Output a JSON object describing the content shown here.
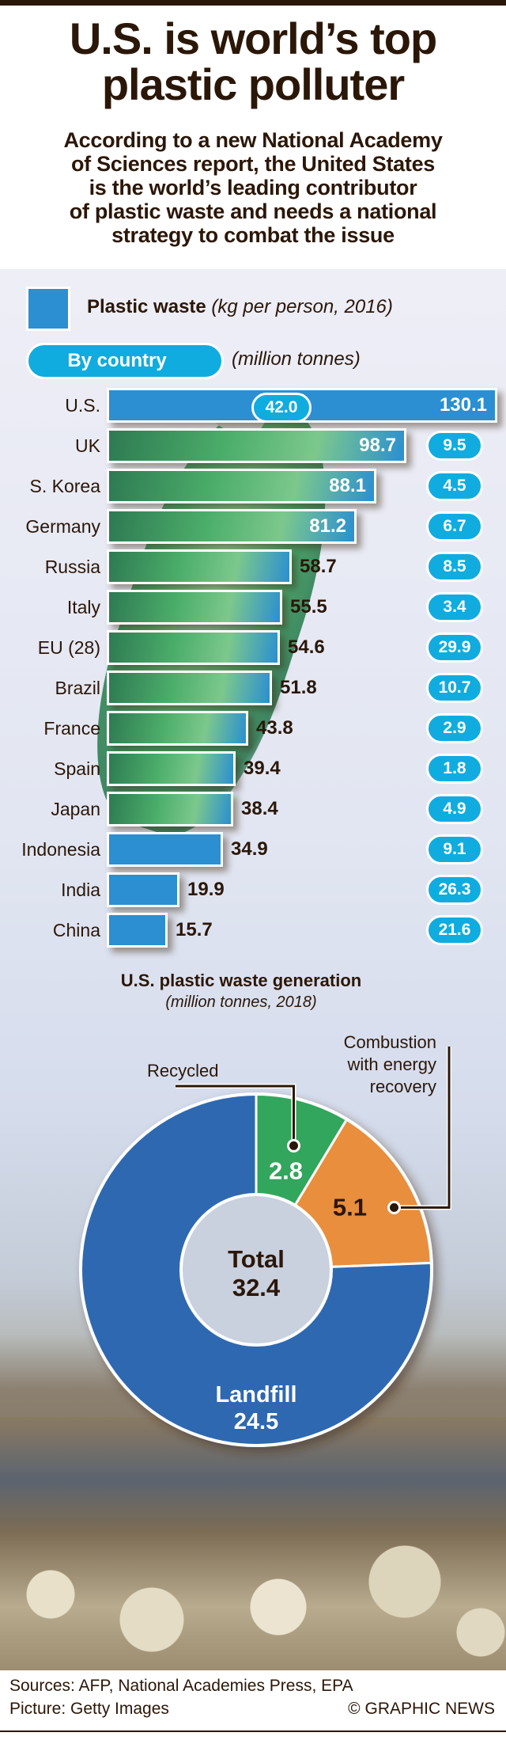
{
  "header": {
    "title_lines": [
      "U.S. is world’s top",
      "plastic polluter"
    ],
    "subtitle_lines": [
      "According to a new National Academy",
      "of Sciences report, the United States",
      "is the world’s leading contributor",
      "of plastic waste and needs a national",
      "strategy to combat the issue"
    ]
  },
  "legend": {
    "label_bold": "Plastic waste",
    "label_italic": "(kg per person, 2016)",
    "pill": "By country",
    "pill_note": "(million tonnes)"
  },
  "colors": {
    "bar": "#2b8fd1",
    "pill": "#10acdf",
    "landfill": "#2e67b1",
    "recycled": "#33a65c",
    "combustion": "#e88e3c",
    "text": "#2b1708"
  },
  "chart_data": [
    {
      "type": "bar",
      "orientation": "horizontal",
      "title": "Plastic waste (kg per person, 2016)",
      "categories": [
        "U.S.",
        "UK",
        "S. Korea",
        "Germany",
        "Russia",
        "Italy",
        "EU (28)",
        "Brazil",
        "France",
        "Spain",
        "Japan",
        "Indonesia",
        "India",
        "China"
      ],
      "series": [
        {
          "name": "kg per person, 2016",
          "values": [
            "130.1",
            "98.7",
            "88.1",
            "81.2",
            "58.7",
            "55.5",
            "54.6",
            "51.8",
            "43.8",
            "39.4",
            "38.4",
            "34.9",
            "19.9",
            "15.7"
          ]
        },
        {
          "name": "million tonnes",
          "values": [
            "42.0",
            "9.5",
            "4.5",
            "6.7",
            "8.5",
            "3.4",
            "29.9",
            "10.7",
            "2.9",
            "1.8",
            "4.9",
            "9.1",
            "26.3",
            "21.6"
          ]
        }
      ]
    },
    {
      "type": "pie",
      "title": "U.S. plastic waste generation",
      "subtitle": "(million tonnes, 2018)",
      "slices": [
        {
          "label": "Recycled",
          "value": "2.8"
        },
        {
          "label": "Combustion with energy recovery",
          "label_lines": [
            "Combustion",
            "with energy",
            "recovery"
          ],
          "value": "5.1"
        },
        {
          "label": "Landfill",
          "value": "24.5"
        }
      ],
      "total_label": "Total",
      "total_value": "32.4"
    }
  ],
  "footer": {
    "sources": "Sources: AFP, National Academies Press, EPA",
    "picture": "Picture: Getty Images",
    "copyright": "© GRAPHIC NEWS"
  }
}
